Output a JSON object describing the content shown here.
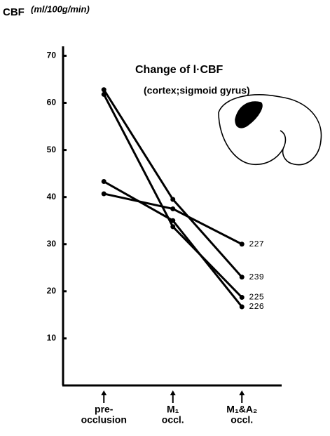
{
  "chart_data": {
    "type": "line",
    "title": "Change of l·CBF",
    "subtitle": "(cortex;sigmoid gyrus)",
    "y_label": "CBF",
    "y_unit": "(ml/100g/min)",
    "categories": [
      [
        "pre-",
        "occlusion"
      ],
      [
        "M₁",
        "occl."
      ],
      [
        "M₁&A₂",
        "occl."
      ]
    ],
    "series": [
      {
        "name": "227",
        "color": "#000000",
        "values": [
          40.7,
          37.5,
          30
        ]
      },
      {
        "name": "239",
        "color": "#000000",
        "values": [
          62.8,
          39.5,
          23
        ]
      },
      {
        "name": "225",
        "color": "#000000",
        "values": [
          61.8,
          33.7,
          18.7
        ]
      },
      {
        "name": "226",
        "color": "#000000",
        "values": [
          43.3,
          35,
          16.7
        ]
      }
    ],
    "ylim": [
      0,
      72
    ],
    "yticks": [
      10,
      20,
      30,
      40,
      50,
      60,
      70
    ],
    "grid": false
  }
}
